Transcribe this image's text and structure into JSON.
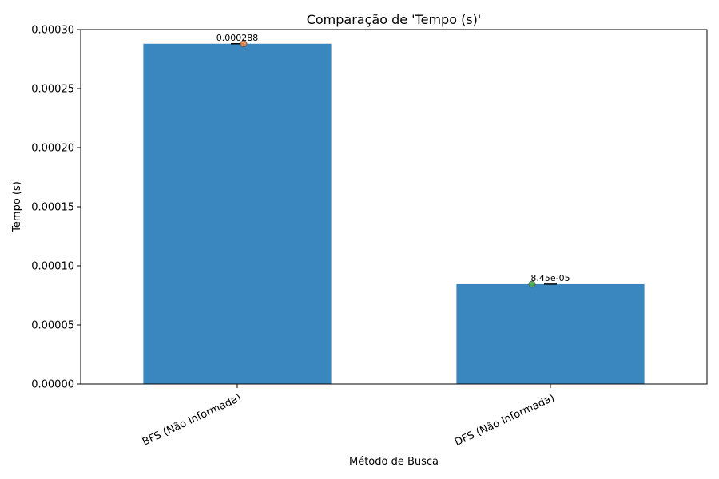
{
  "chart_data": {
    "type": "bar",
    "title": "Comparação de 'Tempo (s)'",
    "xlabel": "Método de Busca",
    "ylabel": "Tempo (s)",
    "categories": [
      "BFS (Não Informada)",
      "DFS (Não Informada)"
    ],
    "values": [
      0.000288,
      8.45e-05
    ],
    "data_labels": [
      "0.000288",
      "8.45e-05"
    ],
    "ylim": [
      0,
      0.0003
    ],
    "yticks": [
      0,
      5e-05,
      0.0001,
      0.00015,
      0.0002,
      0.00025,
      0.0003
    ],
    "ytick_labels": [
      "0.00000",
      "0.00005",
      "0.00010",
      "0.00015",
      "0.00020",
      "0.00025",
      "0.00030"
    ],
    "bar_color": "#3a87c0",
    "marker_colors": [
      "#f08a4b",
      "#4ca84c"
    ],
    "grid": false,
    "legend": "none"
  }
}
